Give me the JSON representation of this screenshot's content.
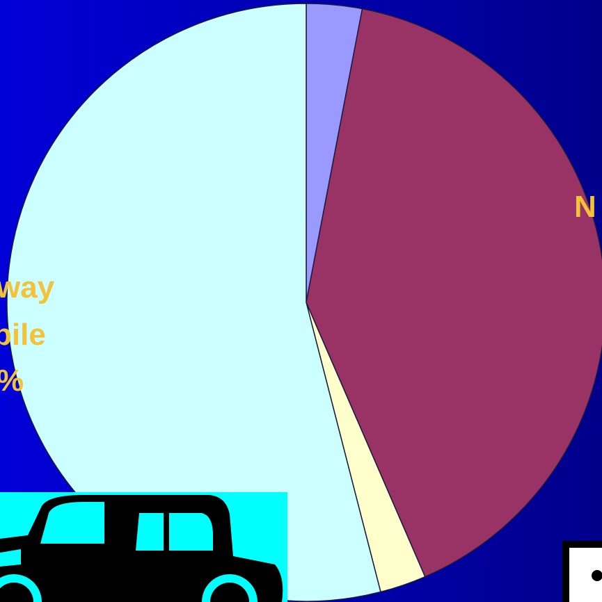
{
  "chart_data": {
    "type": "pie",
    "values": [
      3,
      40.5,
      2.5,
      54
    ],
    "colors": [
      "#9999ff",
      "#993366",
      "#ffffcc",
      "#ccffff"
    ],
    "annotations": [
      "way",
      "bile",
      "%",
      "N"
    ]
  }
}
